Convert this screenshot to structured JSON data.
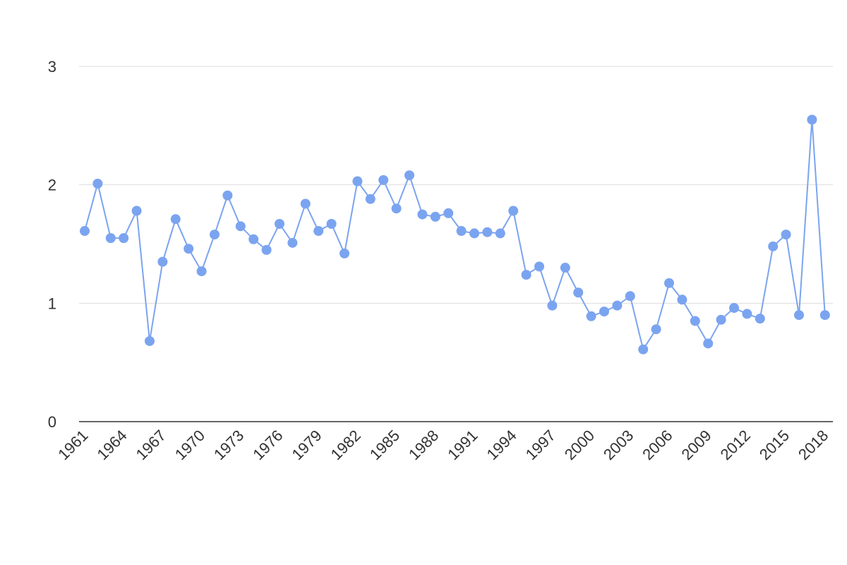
{
  "chart_data": {
    "type": "line",
    "title": "",
    "xlabel": "",
    "ylabel": "",
    "x": [
      1961,
      1962,
      1963,
      1964,
      1965,
      1966,
      1967,
      1968,
      1969,
      1970,
      1971,
      1972,
      1973,
      1974,
      1975,
      1976,
      1977,
      1978,
      1979,
      1980,
      1981,
      1982,
      1983,
      1984,
      1985,
      1986,
      1987,
      1988,
      1989,
      1990,
      1991,
      1992,
      1993,
      1994,
      1995,
      1996,
      1997,
      1998,
      1999,
      2000,
      2001,
      2002,
      2003,
      2004,
      2005,
      2006,
      2007,
      2008,
      2009,
      2010,
      2011,
      2012,
      2013,
      2014,
      2015,
      2016,
      2017,
      2018
    ],
    "x_tick_labels": [
      "1961",
      "1964",
      "1967",
      "1970",
      "1973",
      "1976",
      "1979",
      "1982",
      "1985",
      "1988",
      "1991",
      "1994",
      "1997",
      "2000",
      "2003",
      "2006",
      "2009",
      "2012",
      "2015",
      "2018"
    ],
    "y_ticks": [
      0,
      1,
      2,
      3
    ],
    "ylim": [
      0,
      3
    ],
    "grid": true,
    "series": [
      {
        "color": "#7BA4F0",
        "values": [
          1.61,
          2.01,
          1.55,
          1.55,
          1.78,
          0.68,
          1.35,
          1.71,
          1.46,
          1.27,
          1.58,
          1.91,
          1.65,
          1.54,
          1.45,
          1.67,
          1.51,
          1.84,
          1.61,
          1.67,
          1.42,
          2.03,
          1.88,
          2.04,
          1.8,
          2.08,
          1.75,
          1.73,
          1.76,
          1.61,
          1.59,
          1.6,
          1.59,
          1.78,
          1.24,
          1.31,
          0.98,
          1.3,
          1.09,
          0.89,
          0.93,
          0.98,
          1.06,
          0.61,
          0.78,
          1.17,
          1.03,
          0.85,
          0.66,
          0.86,
          0.96,
          0.91,
          0.87,
          1.48,
          1.58,
          0.9,
          2.55,
          0.9
        ]
      }
    ]
  }
}
